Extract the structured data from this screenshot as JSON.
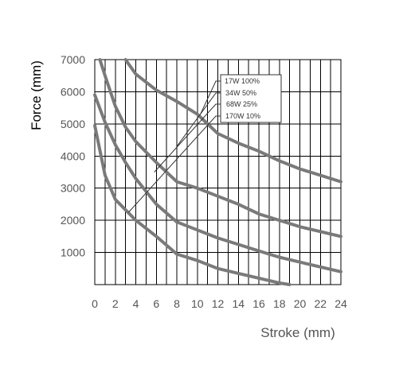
{
  "chart_data": {
    "type": "line",
    "xlabel": "Stroke (mm)",
    "ylabel": "Force (mm)",
    "xlim": [
      0,
      24
    ],
    "ylim": [
      0,
      7000
    ],
    "x_ticks": [
      0,
      2,
      4,
      6,
      8,
      10,
      12,
      14,
      16,
      18,
      20,
      22,
      24
    ],
    "y_ticks": [
      1000,
      2000,
      3000,
      4000,
      5000,
      6000,
      7000
    ],
    "grid": true,
    "grid_minor_x": 1,
    "legend_position": "top-center",
    "legend_points_to": [
      {
        "series": 0,
        "x": 10.3,
        "y": 5300
      },
      {
        "series": 1,
        "x": 8.0,
        "y": 4300
      },
      {
        "series": 2,
        "x": 5.8,
        "y": 3500
      },
      {
        "series": 3,
        "x": 3.3,
        "y": 2250
      }
    ],
    "series": [
      {
        "name": "17W 100%",
        "points": [
          [
            0.5,
            7000
          ],
          [
            1,
            6500
          ],
          [
            2,
            5550
          ],
          [
            3,
            4900
          ],
          [
            4,
            4450
          ],
          [
            6,
            3800
          ],
          [
            8,
            3200
          ],
          [
            10,
            3000
          ],
          [
            12,
            2750
          ],
          [
            14,
            2500
          ],
          [
            16,
            2200
          ],
          [
            18,
            2000
          ],
          [
            20,
            1800
          ],
          [
            22,
            1650
          ],
          [
            24,
            1500
          ]
        ]
      },
      {
        "name": "34W 50%",
        "points": [
          [
            0,
            5900
          ],
          [
            1,
            5050
          ],
          [
            2,
            4350
          ],
          [
            3,
            3800
          ],
          [
            4,
            3300
          ],
          [
            6,
            2500
          ],
          [
            8,
            1950
          ],
          [
            10,
            1700
          ],
          [
            12,
            1450
          ],
          [
            14,
            1250
          ],
          [
            16,
            1050
          ],
          [
            18,
            850
          ],
          [
            20,
            700
          ],
          [
            22,
            550
          ],
          [
            24,
            400
          ]
        ]
      },
      {
        "name": "68W 25%",
        "points": [
          [
            3,
            7000
          ],
          [
            4,
            6550
          ],
          [
            6,
            6050
          ],
          [
            8,
            5700
          ],
          [
            10,
            5300
          ],
          [
            12,
            4700
          ],
          [
            14,
            4400
          ],
          [
            16,
            4150
          ],
          [
            18,
            3850
          ],
          [
            20,
            3600
          ],
          [
            22,
            3400
          ],
          [
            24,
            3200
          ]
        ]
      },
      {
        "name": "170W 10%",
        "points": [
          [
            0,
            4950
          ],
          [
            1,
            3400
          ],
          [
            2,
            2650
          ],
          [
            4,
            2000
          ],
          [
            6,
            1500
          ],
          [
            8,
            950
          ],
          [
            10,
            750
          ],
          [
            12,
            500
          ],
          [
            14,
            350
          ],
          [
            16,
            200
          ],
          [
            18,
            50
          ],
          [
            19,
            0
          ]
        ]
      }
    ],
    "colors": {
      "series_line": "#7a7a7a",
      "grid": "#000000",
      "tick_label": "#555555",
      "ylabel": "#000000",
      "xlabel": "#555555"
    }
  }
}
